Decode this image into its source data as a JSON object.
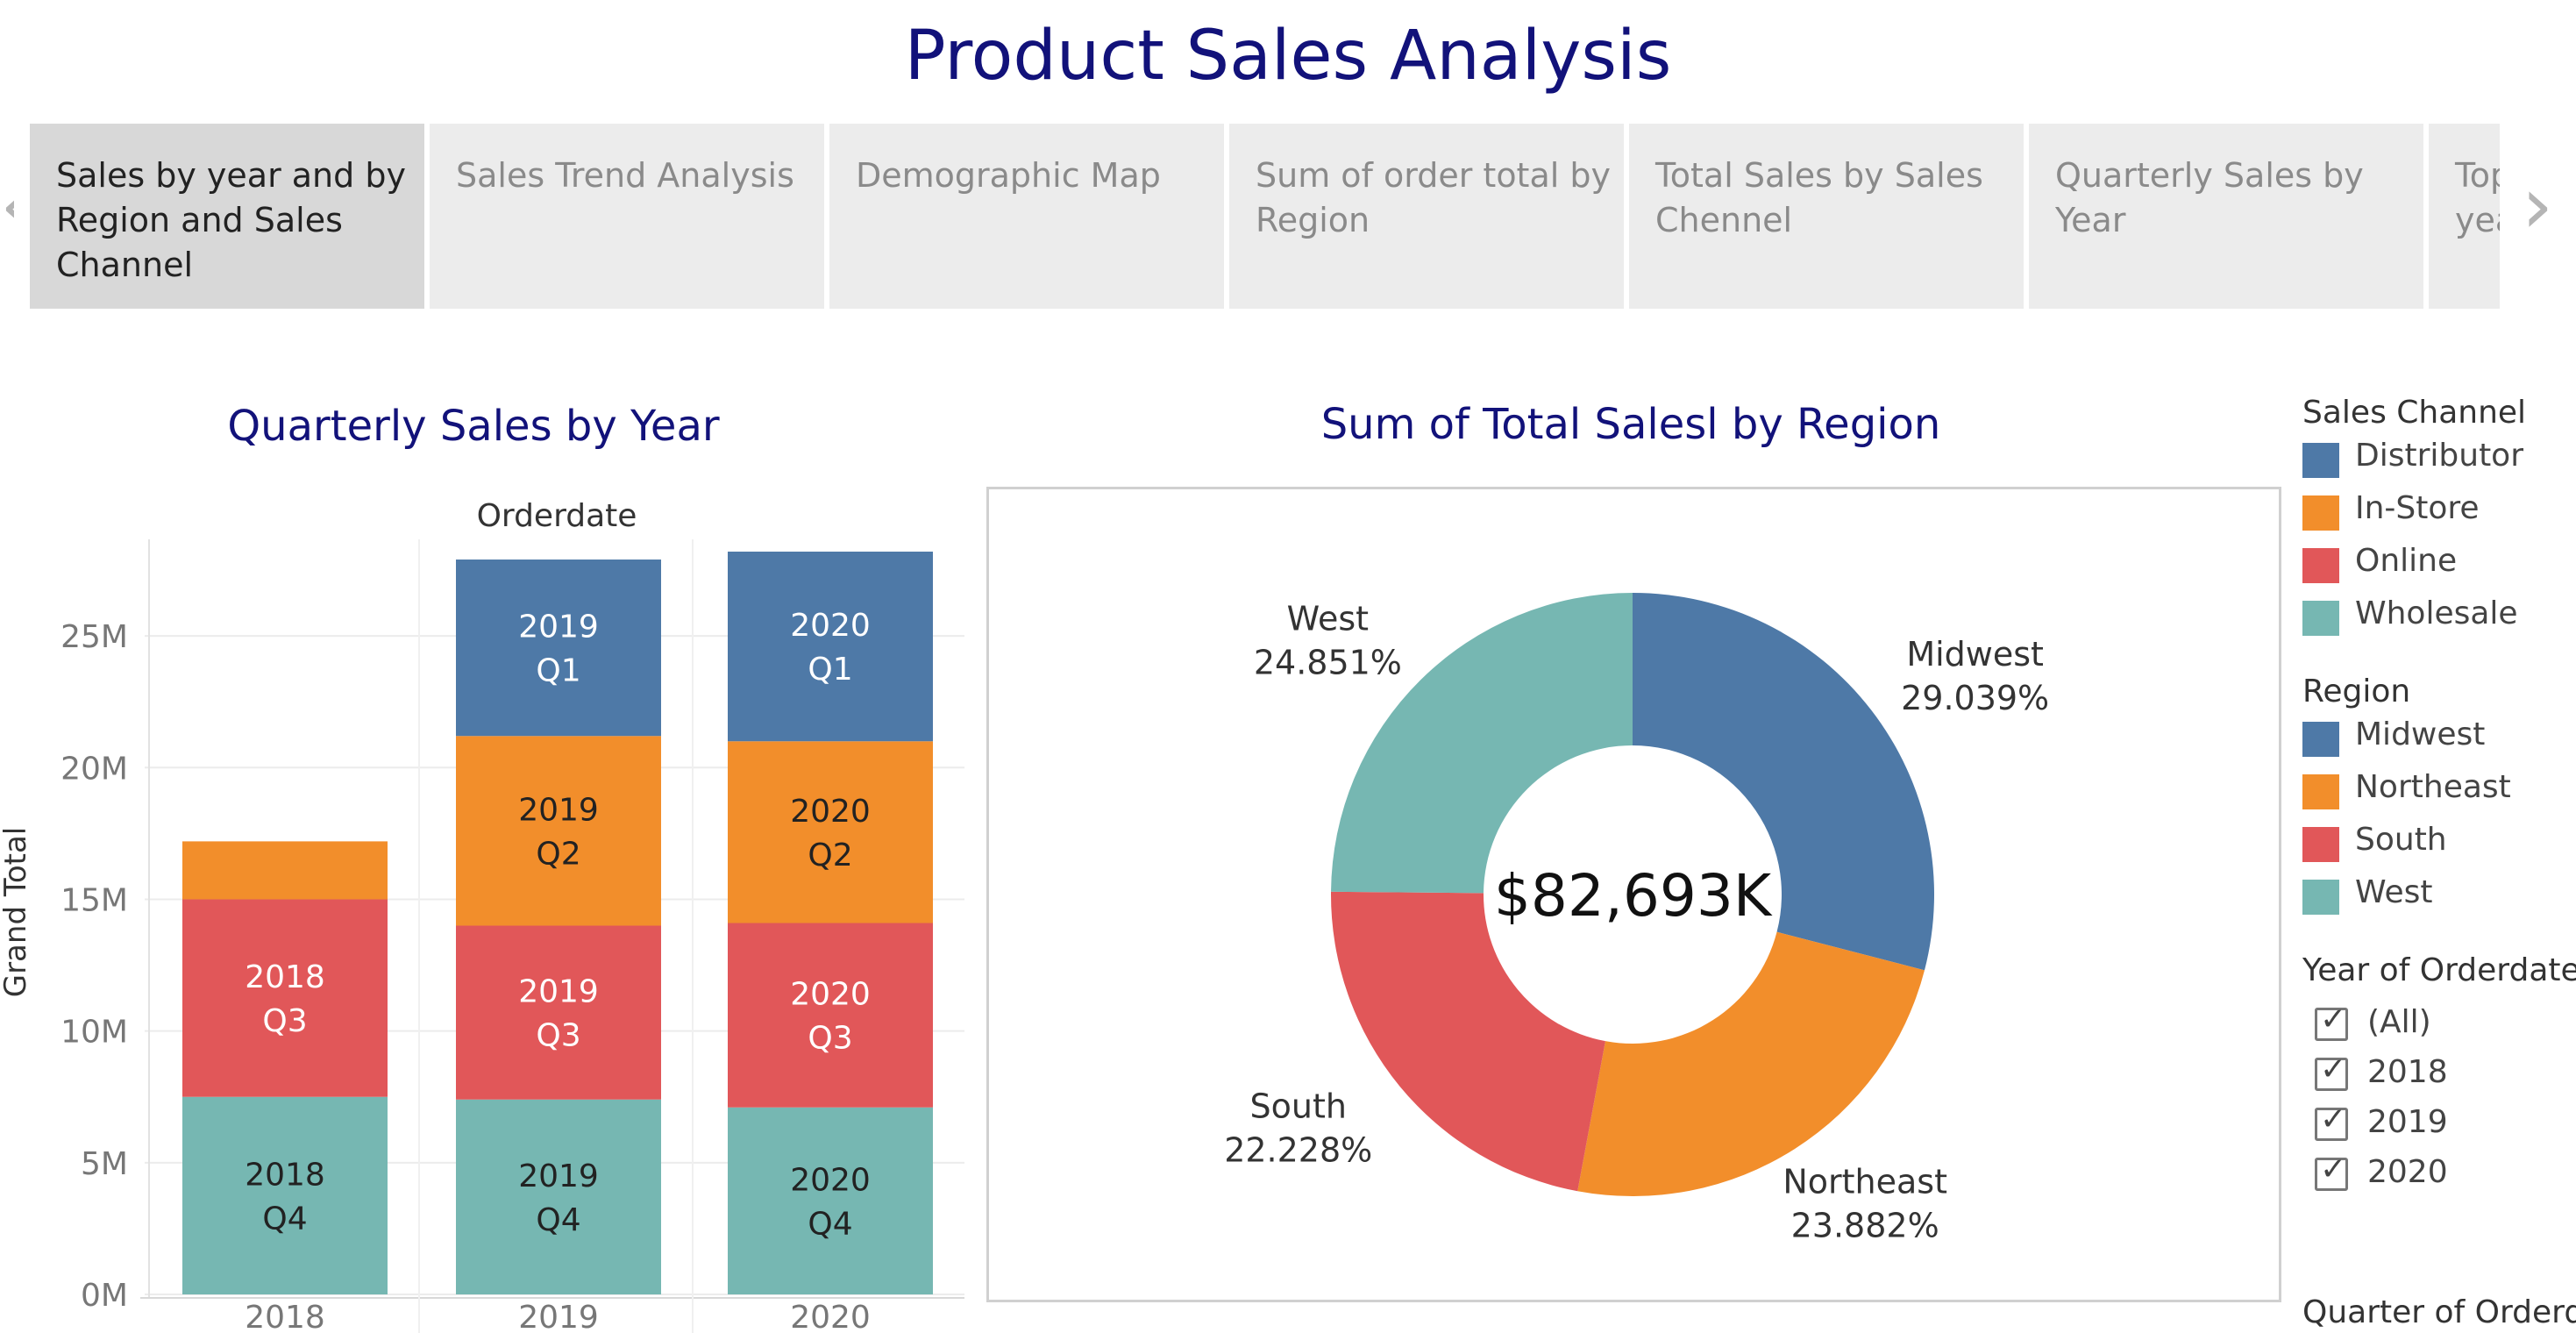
{
  "page": {
    "title": "Product Sales Analysis"
  },
  "tabs": [
    {
      "label": "Sales by year and by Region and Sales Channel",
      "lines": [
        "Sales by year and by",
        "Region and Sales",
        "Channel"
      ],
      "active": true
    },
    {
      "label": "Sales Trend Analysis",
      "lines": [
        "Sales Trend Analysis"
      ],
      "active": false
    },
    {
      "label": "Demographic Map",
      "lines": [
        "Demographic Map"
      ],
      "active": false
    },
    {
      "label": "Sum of order total by Region",
      "lines": [
        "Sum of order total by",
        "Region"
      ],
      "active": false
    },
    {
      "label": "Total Sales by Sales Chennel",
      "lines": [
        "Total Sales by Sales",
        "Chennel"
      ],
      "active": false
    },
    {
      "label": "Quarterly Sales by Year",
      "lines": [
        "Quarterly Sales by",
        "Year"
      ],
      "active": false
    },
    {
      "label": "Top",
      "lines": [
        "Top",
        "yea"
      ],
      "active": false
    }
  ],
  "nav": {
    "prev_icon": "chevron-left-icon",
    "next_icon": "chevron-right-icon"
  },
  "colors": {
    "title": "#12127a",
    "blue": "#4e79a7",
    "orange": "#f28e2b",
    "red": "#e15759",
    "teal": "#76b7b2"
  },
  "quarterly_chart": {
    "title": "Quarterly Sales by Year",
    "header": "Orderdate",
    "ylabel": "Grand Total"
  },
  "donut_chart": {
    "title": "Sum of Total Salesl by Region",
    "center_label": "$82,693K"
  },
  "legends": {
    "sales_channel": {
      "title": "Sales Channel",
      "items": [
        {
          "label": "Distributor",
          "color": "#4e79a7"
        },
        {
          "label": "In-Store",
          "color": "#f28e2b"
        },
        {
          "label": "Online",
          "color": "#e15759"
        },
        {
          "label": "Wholesale",
          "color": "#76b7b2"
        }
      ]
    },
    "region": {
      "title": "Region",
      "items": [
        {
          "label": "Midwest",
          "color": "#4e79a7"
        },
        {
          "label": "Northeast",
          "color": "#f28e2b"
        },
        {
          "label": "South",
          "color": "#e15759"
        },
        {
          "label": "West",
          "color": "#76b7b2"
        }
      ]
    }
  },
  "filters": {
    "year": {
      "title": "Year of Orderdate",
      "options": [
        {
          "label": "(All)",
          "checked": true
        },
        {
          "label": "2018",
          "checked": true
        },
        {
          "label": "2019",
          "checked": true
        },
        {
          "label": "2020",
          "checked": true
        }
      ]
    },
    "quarter": {
      "title": "Quarter of Orderd..."
    }
  },
  "chart_data": [
    {
      "type": "bar",
      "stacked": true,
      "title": "Quarterly Sales by Year",
      "header": "Orderdate",
      "ylabel": "Grand Total",
      "categories": [
        "2018",
        "2019",
        "2020"
      ],
      "yticks": [
        {
          "value": 0,
          "label": "0M"
        },
        {
          "value": 5000000,
          "label": "5M"
        },
        {
          "value": 10000000,
          "label": "10M"
        },
        {
          "value": 15000000,
          "label": "15M"
        },
        {
          "value": 20000000,
          "label": "20M"
        },
        {
          "value": 25000000,
          "label": "25M"
        }
      ],
      "ylim": [
        0,
        28500000
      ],
      "grid": true,
      "series": [
        {
          "name": "Q4",
          "color": "#76b7b2",
          "values": [
            7500000,
            7400000,
            7100000
          ],
          "labels": [
            "2018\nQ4",
            "2019\nQ4",
            "2020\nQ4"
          ],
          "label_color": "#222222"
        },
        {
          "name": "Q3",
          "color": "#e15759",
          "values": [
            7500000,
            6600000,
            7000000
          ],
          "labels": [
            "2018\nQ3",
            "2019\nQ3",
            "2020\nQ3"
          ],
          "label_color": "#ffffff"
        },
        {
          "name": "Q2",
          "color": "#f28e2b",
          "values": [
            2200000,
            7200000,
            6900000
          ],
          "labels": [
            "",
            "2019\nQ2",
            "2020\nQ2"
          ],
          "label_color": "#222222"
        },
        {
          "name": "Q1",
          "color": "#4e79a7",
          "values": [
            0,
            6700000,
            7200000
          ],
          "labels": [
            "",
            "2019\nQ1",
            "2020\nQ1"
          ],
          "label_color": "#ffffff"
        }
      ]
    },
    {
      "type": "pie",
      "donut": true,
      "title": "Sum of Total Salesl by Region",
      "center_label": "$82,693K",
      "slices": [
        {
          "label": "Midwest",
          "value": 29.039,
          "display": "29.039%",
          "color": "#4e79a7",
          "anchor": "end"
        },
        {
          "label": "Northeast",
          "value": 23.882,
          "display": "23.882%",
          "color": "#f28e2b",
          "anchor": "end"
        },
        {
          "label": "South",
          "value": 22.228,
          "display": "22.228%",
          "color": "#e15759",
          "anchor": "start"
        },
        {
          "label": "West",
          "value": 24.851,
          "display": "24.851%",
          "color": "#76b7b2",
          "anchor": "start"
        }
      ]
    }
  ]
}
